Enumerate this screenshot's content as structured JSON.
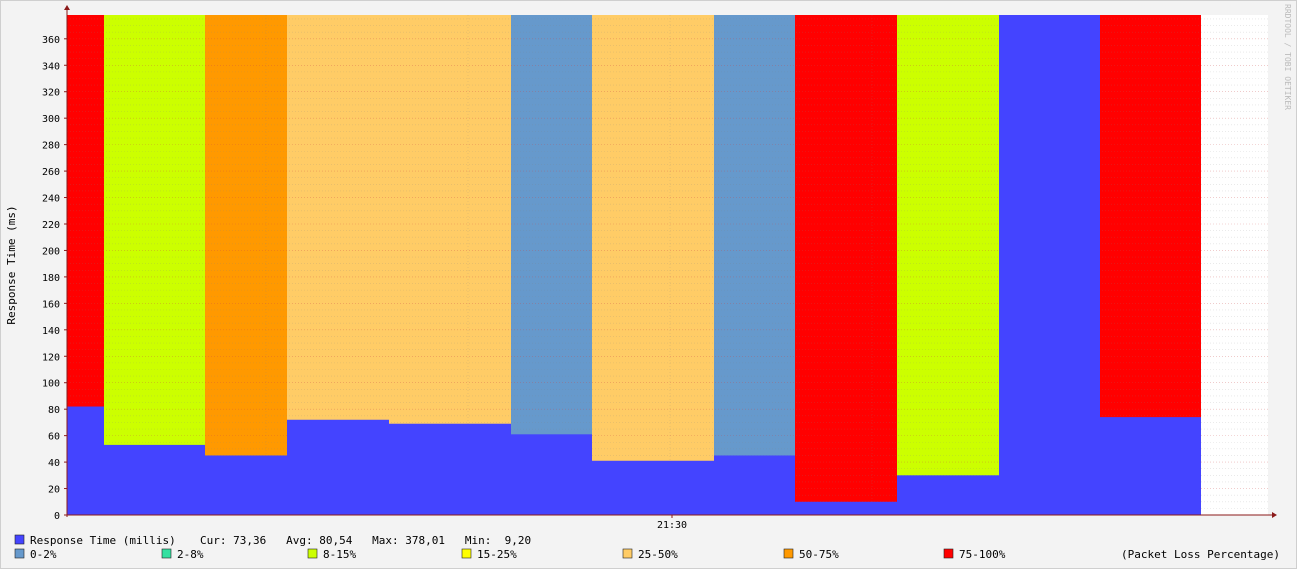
{
  "watermark": "RRDTOOL / TOBI OETIKER",
  "chart_data": {
    "type": "area",
    "ylabel": "Response Time (ms)",
    "ylim": [
      0,
      378
    ],
    "yticks": [
      0,
      20,
      40,
      60,
      80,
      100,
      120,
      140,
      160,
      180,
      200,
      220,
      240,
      260,
      280,
      300,
      320,
      340,
      360
    ],
    "x_tick_label": "21:30",
    "grid": true,
    "segments": [
      {
        "response_time": 82,
        "loss_band": "75-100%"
      },
      {
        "response_time": 53,
        "loss_band": "8-15%"
      },
      {
        "response_time": 45,
        "loss_band": "50-75%"
      },
      {
        "response_time": 72,
        "loss_band": "25-50%"
      },
      {
        "response_time": 69,
        "loss_band": "25-50%"
      },
      {
        "response_time": 61,
        "loss_band": "0-2%"
      },
      {
        "response_time": 41,
        "loss_band": "25-50%"
      },
      {
        "response_time": 45,
        "loss_band": "0-2%"
      },
      {
        "response_time": 10,
        "loss_band": "75-100%"
      },
      {
        "response_time": 30,
        "loss_band": "8-15%"
      },
      {
        "response_time": 378,
        "loss_band": "none"
      },
      {
        "response_time": 74,
        "loss_band": "75-100%"
      }
    ],
    "series": {
      "name": "Response Time (millis)",
      "color": "#4444ff",
      "cur": "73,36",
      "avg": "80,54",
      "max": "378,01",
      "min": "9,20"
    },
    "legend": {
      "response_label": "Response Time (millis)",
      "stats_text": "Cur: 73,36   Avg: 80,54   Max: 378,01   Min:  9,20",
      "loss_title": "(Packet Loss Percentage)",
      "loss_bands": [
        {
          "label": "0-2%",
          "color": "#6699cc"
        },
        {
          "label": "2-8%",
          "color": "#33e0a0"
        },
        {
          "label": "8-15%",
          "color": "#ccff00"
        },
        {
          "label": "15-25%",
          "color": "#ffff00"
        },
        {
          "label": "25-50%",
          "color": "#ffcc66"
        },
        {
          "label": "50-75%",
          "color": "#ff9900"
        },
        {
          "label": "75-100%",
          "color": "#ff0000"
        }
      ]
    }
  }
}
